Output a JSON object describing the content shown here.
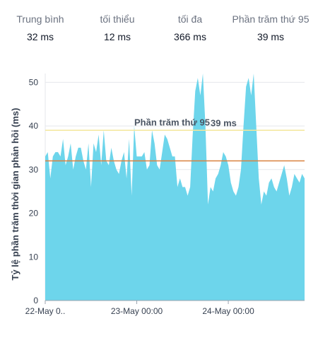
{
  "stats": [
    {
      "label": "Trung bình",
      "value": "32 ms"
    },
    {
      "label": "tối thiểu",
      "value": "12 ms"
    },
    {
      "label": "tối đa",
      "value": "366 ms"
    },
    {
      "label": "Phần trăm thứ 95",
      "value": "39 ms"
    }
  ],
  "chart_data": {
    "type": "area",
    "ylabel": "Tỷ lệ phần trăm thời gian phản hồi (ms)",
    "xlabel": "",
    "ylim": [
      0,
      52
    ],
    "yticks": [
      0,
      10,
      20,
      30,
      40,
      50
    ],
    "xlim": [
      "2024-05-22T00:00",
      "2024-05-24T20:00"
    ],
    "xticks": [
      {
        "x": "2024-05-22T00:00",
        "label": "22-May 0.."
      },
      {
        "x": "2024-05-23T00:00",
        "label": "23-May 00:00"
      },
      {
        "x": "2024-05-24T00:00",
        "label": "24-May 00:00"
      }
    ],
    "grid": true,
    "colors": {
      "area": "#6dd5eb",
      "p95": "#f3e79b",
      "avg": "#d9813f",
      "grid": "#e5e7eb"
    },
    "series": [
      {
        "x": [
          "2024-05-22T00:00",
          "2024-05-22T00:40",
          "2024-05-22T01:20",
          "2024-05-22T02:00",
          "2024-05-22T02:40",
          "2024-05-22T03:20",
          "2024-05-22T04:00",
          "2024-05-22T04:40",
          "2024-05-22T05:20",
          "2024-05-22T06:00",
          "2024-05-22T06:40",
          "2024-05-22T07:20",
          "2024-05-22T08:00",
          "2024-05-22T08:40",
          "2024-05-22T09:20",
          "2024-05-22T10:00",
          "2024-05-22T10:40",
          "2024-05-22T11:20",
          "2024-05-22T12:00",
          "2024-05-22T12:40",
          "2024-05-22T13:20",
          "2024-05-22T14:00",
          "2024-05-22T14:40",
          "2024-05-22T15:20",
          "2024-05-22T16:00",
          "2024-05-22T16:40",
          "2024-05-22T17:20",
          "2024-05-22T18:00",
          "2024-05-22T18:40",
          "2024-05-22T19:20",
          "2024-05-22T20:00",
          "2024-05-22T20:40",
          "2024-05-22T21:20",
          "2024-05-22T22:00",
          "2024-05-22T22:40",
          "2024-05-22T23:20",
          "2024-05-23T00:00",
          "2024-05-23T00:40",
          "2024-05-23T01:20",
          "2024-05-23T02:00",
          "2024-05-23T02:40",
          "2024-05-23T03:20",
          "2024-05-23T04:00",
          "2024-05-23T04:40",
          "2024-05-23T05:20",
          "2024-05-23T06:00",
          "2024-05-23T06:40",
          "2024-05-23T07:20",
          "2024-05-23T08:00",
          "2024-05-23T08:40",
          "2024-05-23T09:20",
          "2024-05-23T10:00",
          "2024-05-23T10:40",
          "2024-05-23T11:20",
          "2024-05-23T12:00",
          "2024-05-23T12:40",
          "2024-05-23T13:20",
          "2024-05-23T14:00",
          "2024-05-23T14:40",
          "2024-05-23T15:20",
          "2024-05-23T16:00",
          "2024-05-23T16:40",
          "2024-05-23T17:20",
          "2024-05-23T18:00",
          "2024-05-23T18:40",
          "2024-05-23T19:20",
          "2024-05-23T20:00",
          "2024-05-23T20:40",
          "2024-05-23T21:20",
          "2024-05-23T22:00",
          "2024-05-23T22:40",
          "2024-05-23T23:20",
          "2024-05-24T00:00",
          "2024-05-24T00:40",
          "2024-05-24T01:20",
          "2024-05-24T02:00",
          "2024-05-24T02:40",
          "2024-05-24T03:20",
          "2024-05-24T04:00",
          "2024-05-24T04:40",
          "2024-05-24T05:20",
          "2024-05-24T06:00",
          "2024-05-24T06:40",
          "2024-05-24T07:20",
          "2024-05-24T08:00",
          "2024-05-24T08:40",
          "2024-05-24T09:20",
          "2024-05-24T10:00",
          "2024-05-24T10:40",
          "2024-05-24T11:20",
          "2024-05-24T12:00",
          "2024-05-24T12:40",
          "2024-05-24T13:20",
          "2024-05-24T14:00",
          "2024-05-24T14:40",
          "2024-05-24T15:20",
          "2024-05-24T16:00",
          "2024-05-24T16:40",
          "2024-05-24T17:20",
          "2024-05-24T18:00",
          "2024-05-24T18:40",
          "2024-05-24T19:20",
          "2024-05-24T20:00"
        ],
        "values": [
          33,
          34,
          28,
          33,
          34,
          34,
          33,
          37,
          31,
          33,
          36,
          30,
          33,
          35,
          35,
          32,
          30,
          36,
          26,
          36,
          34,
          38,
          31,
          39,
          32,
          31,
          35,
          32,
          30,
          29,
          32,
          34,
          28,
          37,
          24,
          40,
          33,
          33,
          33,
          34,
          30,
          31,
          39,
          36,
          31,
          30,
          34,
          38,
          37,
          35,
          33,
          33,
          26,
          28,
          26,
          26,
          24,
          26,
          38,
          48,
          51,
          47,
          52,
          40,
          22,
          26,
          25,
          28,
          29,
          31,
          34,
          33,
          31,
          27,
          25,
          24,
          26,
          30,
          40,
          49,
          51,
          47,
          52,
          40,
          28,
          22,
          25,
          24,
          27,
          28,
          26,
          25,
          27,
          29,
          31,
          28,
          24,
          26,
          29,
          28,
          27,
          29,
          28
        ]
      }
    ],
    "reference_lines": [
      {
        "name": "Phần trăm thứ 95",
        "value": 39,
        "label": "Phần trăm thứ 95",
        "value_label": "39 ms"
      },
      {
        "name": "Trung bình",
        "value": 32
      }
    ]
  }
}
